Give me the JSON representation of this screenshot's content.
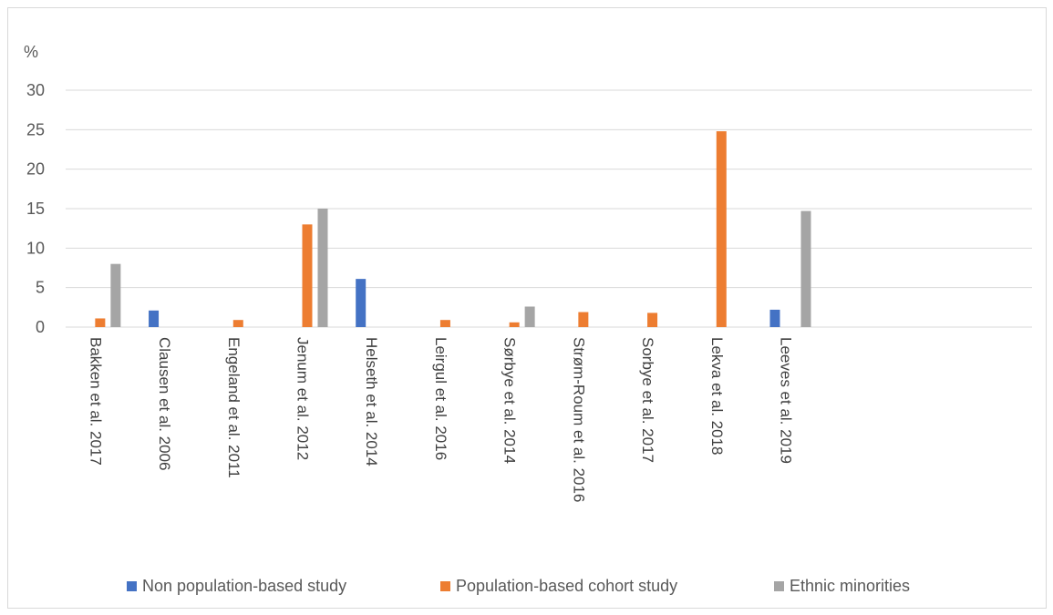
{
  "chart_data": {
    "type": "bar",
    "ylabel": "%",
    "ylim": [
      0,
      30
    ],
    "yticks": [
      0,
      5,
      10,
      15,
      20,
      25,
      30
    ],
    "grid": true,
    "legend_position": "bottom",
    "categories": [
      "Bakken et al. 2017",
      "Clausen et al. 2006",
      "Engeland et al. 2011",
      "Jenum et al. 2012",
      "Helseth et al. 2014",
      "Leirgul et al. 2016",
      "Sørbye et al. 2014",
      "Strøm-Roum et al. 2016",
      "Sorbye et al. 2017",
      "Lekva et al. 2018",
      "Leeves et al. 2019"
    ],
    "extra_empty_categories": 3,
    "series": [
      {
        "name": "Non population-based study",
        "color": "#4472c4",
        "values": [
          0,
          2.1,
          0,
          0,
          6.1,
          0,
          0,
          0,
          0,
          0,
          2.2
        ]
      },
      {
        "name": "Population-based cohort study",
        "color": "#ed7d31",
        "values": [
          1.1,
          0,
          0.9,
          13,
          0,
          0.9,
          0.6,
          1.9,
          1.8,
          24.8,
          0
        ]
      },
      {
        "name": "Ethnic minorities",
        "color": "#a5a5a5",
        "values": [
          8,
          0,
          0,
          15,
          0,
          0,
          2.6,
          0,
          0,
          0,
          14.7
        ]
      }
    ]
  }
}
